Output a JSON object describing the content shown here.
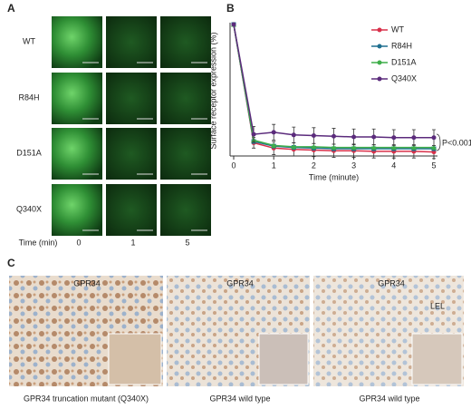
{
  "panel_labels": [
    "A",
    "B",
    "C"
  ],
  "panel_a": {
    "row_labels": [
      "WT",
      "R84H",
      "D151A",
      "Q340X"
    ],
    "time_label": "Time (min)",
    "time_values": [
      "0",
      "1",
      "5"
    ]
  },
  "chart_data": {
    "type": "line",
    "y_label": "Surface receptor expression (%)",
    "x_label": "Time (minute)",
    "x": [
      0,
      0.5,
      1,
      1.5,
      2,
      2.5,
      3,
      3.5,
      4,
      4.5,
      5
    ],
    "xlim": [
      0,
      5
    ],
    "xticks": [
      0,
      1,
      2,
      3,
      4,
      5
    ],
    "ylim": [
      0,
      100
    ],
    "series": [
      {
        "name": "WT",
        "color": "#d8304a",
        "values": [
          100,
          10,
          6,
          5,
          4.5,
          4,
          4,
          3.5,
          3.5,
          3.5,
          3
        ],
        "errors": [
          0,
          4,
          5,
          5,
          5,
          5,
          5,
          5,
          5,
          5,
          5
        ]
      },
      {
        "name": "R84H",
        "color": "#1f6f8f",
        "values": [
          100,
          11,
          7.5,
          6.5,
          6,
          5.5,
          5.5,
          5.5,
          5.5,
          5.5,
          5.5
        ]
      },
      {
        "name": "D151A",
        "color": "#3fae4a",
        "values": [
          100,
          12,
          8,
          7,
          7,
          6.5,
          6.5,
          6.5,
          6.5,
          6.5,
          6.5
        ]
      },
      {
        "name": "Q340X",
        "color": "#5b2b7c",
        "values": [
          100,
          16.5,
          18,
          16,
          15.5,
          15,
          14.5,
          14.5,
          14,
          14,
          14
        ],
        "errors": [
          0,
          6,
          6,
          6,
          6,
          6,
          6,
          6,
          6,
          6,
          6
        ]
      }
    ],
    "annotation": "P<0.001"
  },
  "panel_c": {
    "stain_labels": [
      "GPR34",
      "GPR34",
      "GPR34"
    ],
    "region_label": "LEL",
    "captions": [
      "GPR34 truncation mutant (Q340X)",
      "GPR34 wild type",
      "GPR34 wild type"
    ]
  }
}
